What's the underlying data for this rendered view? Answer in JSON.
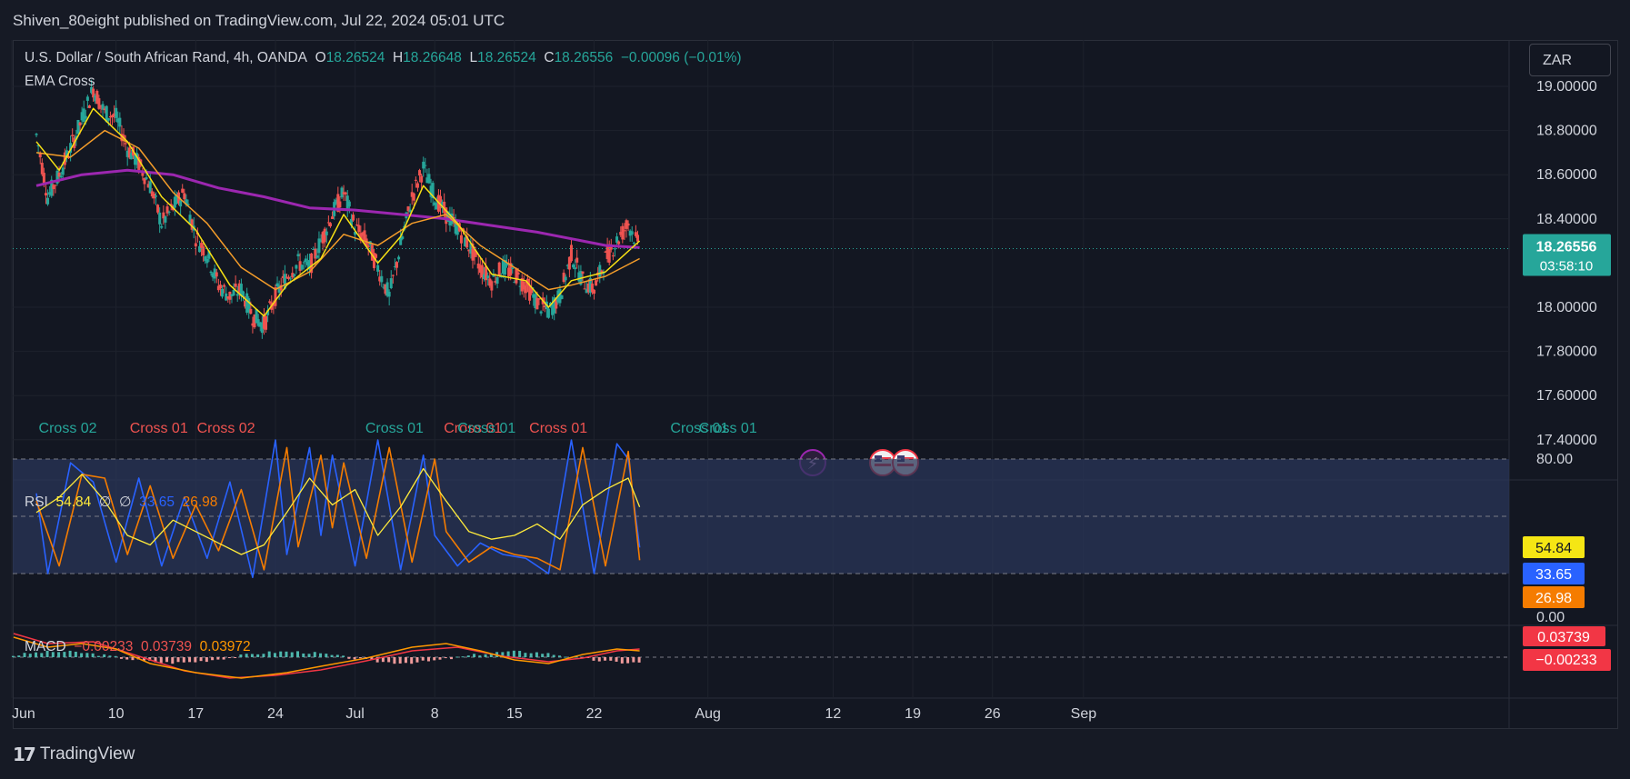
{
  "publisher": "Shiven_80eight published on TradingView.com, Jul 22, 2024 05:01 UTC",
  "branding": "TradingView",
  "symbol": {
    "title": "U.S. Dollar / South African Rand, 4h, OANDA",
    "o_label": "O",
    "o": "18.26524",
    "h_label": "H",
    "h": "18.26648",
    "l_label": "L",
    "l": "18.26524",
    "c_label": "C",
    "c": "18.26556",
    "change": "−0.00096 (−0.01%)",
    "indicator": "EMA Cross"
  },
  "currency_button": "ZAR",
  "colors": {
    "up": "#26a69a",
    "down": "#ef5350",
    "ema_fast": "#f7e014",
    "ema_mid": "#f59d2a",
    "ema_slow": "#9c27b0",
    "rsi_fast": "#2962ff",
    "rsi_mid": "#f57c00",
    "rsi_yellow": "#ffeb3b",
    "macd_line": "#ff9800",
    "signal_line": "#f23645"
  },
  "chart_data": {
    "type": "candlestick",
    "instrument": "USD/ZAR",
    "timeframe": "4h",
    "price_axis": {
      "ticks": [
        "19.00000",
        "18.80000",
        "18.60000",
        "18.40000",
        "18.00000",
        "17.80000",
        "17.60000",
        "17.40000"
      ],
      "ylim": [
        17.2,
        19.1
      ],
      "current_price": "18.26556",
      "countdown": "03:58:10"
    },
    "x_axis_ticks": [
      "Jun",
      "10",
      "17",
      "24",
      "Jul",
      "8",
      "15",
      "22",
      "Aug",
      "12",
      "19",
      "26",
      "Sep"
    ],
    "close_path_days": [
      [
        3,
        18.78
      ],
      [
        4,
        18.5
      ],
      [
        5,
        18.6
      ],
      [
        6,
        18.72
      ],
      [
        7,
        18.85
      ],
      [
        8,
        18.99
      ],
      [
        9,
        18.88
      ],
      [
        10,
        18.86
      ],
      [
        11,
        18.72
      ],
      [
        12,
        18.65
      ],
      [
        13,
        18.55
      ],
      [
        14,
        18.38
      ],
      [
        15,
        18.45
      ],
      [
        16,
        18.52
      ],
      [
        17,
        18.32
      ],
      [
        18,
        18.24
      ],
      [
        19,
        18.1
      ],
      [
        20,
        18.05
      ],
      [
        21,
        18.08
      ],
      [
        22,
        17.96
      ],
      [
        23,
        17.92
      ],
      [
        24,
        18.05
      ],
      [
        25,
        18.14
      ],
      [
        26,
        18.2
      ],
      [
        27,
        18.18
      ],
      [
        28,
        18.3
      ],
      [
        29,
        18.42
      ],
      [
        30,
        18.52
      ],
      [
        31,
        18.36
      ],
      [
        32,
        18.3
      ],
      [
        33,
        18.18
      ],
      [
        34,
        18.05
      ],
      [
        35,
        18.28
      ],
      [
        36,
        18.5
      ],
      [
        37,
        18.63
      ],
      [
        38,
        18.5
      ],
      [
        39,
        18.42
      ],
      [
        40,
        18.36
      ],
      [
        41,
        18.28
      ],
      [
        42,
        18.18
      ],
      [
        43,
        18.12
      ],
      [
        44,
        18.18
      ],
      [
        45,
        18.15
      ],
      [
        46,
        18.1
      ],
      [
        47,
        18.02
      ],
      [
        48,
        17.98
      ],
      [
        49,
        18.05
      ],
      [
        50,
        18.24
      ],
      [
        51,
        18.12
      ],
      [
        52,
        18.08
      ],
      [
        53,
        18.22
      ],
      [
        54,
        18.3
      ],
      [
        55,
        18.38
      ],
      [
        56,
        18.26556
      ]
    ],
    "ema_fast": [
      [
        3,
        18.75
      ],
      [
        5,
        18.62
      ],
      [
        8,
        18.9
      ],
      [
        11,
        18.75
      ],
      [
        14,
        18.5
      ],
      [
        17,
        18.35
      ],
      [
        20,
        18.1
      ],
      [
        23,
        17.96
      ],
      [
        25,
        18.1
      ],
      [
        28,
        18.22
      ],
      [
        30,
        18.42
      ],
      [
        33,
        18.2
      ],
      [
        35,
        18.32
      ],
      [
        37,
        18.55
      ],
      [
        40,
        18.38
      ],
      [
        43,
        18.15
      ],
      [
        46,
        18.12
      ],
      [
        48,
        18.0
      ],
      [
        50,
        18.12
      ],
      [
        53,
        18.16
      ],
      [
        56,
        18.3
      ]
    ],
    "ema_mid": [
      [
        3,
        18.7
      ],
      [
        6,
        18.68
      ],
      [
        9,
        18.8
      ],
      [
        12,
        18.72
      ],
      [
        15,
        18.52
      ],
      [
        18,
        18.38
      ],
      [
        21,
        18.18
      ],
      [
        24,
        18.08
      ],
      [
        27,
        18.16
      ],
      [
        30,
        18.33
      ],
      [
        33,
        18.28
      ],
      [
        36,
        18.38
      ],
      [
        39,
        18.42
      ],
      [
        42,
        18.28
      ],
      [
        45,
        18.18
      ],
      [
        48,
        18.08
      ],
      [
        50,
        18.1
      ],
      [
        53,
        18.14
      ],
      [
        56,
        18.22
      ]
    ],
    "ema_slow": [
      [
        3,
        18.55
      ],
      [
        7,
        18.6
      ],
      [
        11,
        18.62
      ],
      [
        15,
        18.6
      ],
      [
        19,
        18.54
      ],
      [
        23,
        18.5
      ],
      [
        27,
        18.45
      ],
      [
        31,
        18.44
      ],
      [
        35,
        18.42
      ],
      [
        39,
        18.4
      ],
      [
        43,
        18.37
      ],
      [
        47,
        18.34
      ],
      [
        51,
        18.3
      ],
      [
        53,
        18.28
      ],
      [
        56,
        18.27
      ]
    ],
    "cross_labels": [
      {
        "text": "Cross 02",
        "day": 3.2,
        "color": "up"
      },
      {
        "text": "Cross 01",
        "day": 11.2,
        "color": "down"
      },
      {
        "text": "Cross 02",
        "day": 17.1,
        "color": "down"
      },
      {
        "text": "Cross 01",
        "day": 31.9,
        "color": "up"
      },
      {
        "text": "Cross 01",
        "day": 38.8,
        "color": "down"
      },
      {
        "text": "Cross 01",
        "day": 40.0,
        "color": "up"
      },
      {
        "text": "Cross 01",
        "day": 46.3,
        "color": "down"
      },
      {
        "text": "Cross 01",
        "day": 58.7,
        "color": "up"
      },
      {
        "text": "Cross 01",
        "day": 61.2,
        "color": "up"
      }
    ],
    "rsi": {
      "name": "RSI",
      "values_display": [
        "54.84",
        "∅",
        "∅",
        "33.65",
        "26.98"
      ],
      "axis_ticks": [
        "80.00",
        "0.00"
      ],
      "ylim": [
        0,
        100
      ],
      "bands": [
        20,
        50,
        80
      ],
      "badges": [
        "54.84",
        "33.65",
        "26.98"
      ],
      "rsi_yellow": [
        [
          3,
          52
        ],
        [
          5,
          60
        ],
        [
          7,
          72
        ],
        [
          9,
          58
        ],
        [
          11,
          40
        ],
        [
          13,
          35
        ],
        [
          15,
          48
        ],
        [
          17,
          42
        ],
        [
          19,
          36
        ],
        [
          21,
          30
        ],
        [
          23,
          35
        ],
        [
          25,
          52
        ],
        [
          27,
          70
        ],
        [
          29,
          56
        ],
        [
          31,
          64
        ],
        [
          33,
          40
        ],
        [
          35,
          55
        ],
        [
          37,
          75
        ],
        [
          39,
          58
        ],
        [
          41,
          42
        ],
        [
          43,
          38
        ],
        [
          45,
          40
        ],
        [
          47,
          46
        ],
        [
          49,
          38
        ],
        [
          51,
          56
        ],
        [
          53,
          64
        ],
        [
          55,
          70
        ],
        [
          56,
          54.84
        ]
      ],
      "rsi_blue": [
        [
          3,
          62
        ],
        [
          4,
          20
        ],
        [
          6,
          78
        ],
        [
          8,
          68
        ],
        [
          10,
          26
        ],
        [
          12,
          70
        ],
        [
          14,
          24
        ],
        [
          16,
          60
        ],
        [
          18,
          28
        ],
        [
          20,
          68
        ],
        [
          22,
          18
        ],
        [
          24,
          90
        ],
        [
          25,
          30
        ],
        [
          27,
          86
        ],
        [
          28,
          40
        ],
        [
          29,
          82
        ],
        [
          31,
          24
        ],
        [
          33,
          90
        ],
        [
          35,
          22
        ],
        [
          37,
          82
        ],
        [
          38,
          40
        ],
        [
          40,
          24
        ],
        [
          42,
          36
        ],
        [
          44,
          30
        ],
        [
          46,
          28
        ],
        [
          48,
          20
        ],
        [
          50,
          90
        ],
        [
          52,
          20
        ],
        [
          54,
          88
        ],
        [
          55,
          80
        ],
        [
          56,
          33.65
        ]
      ],
      "rsi_orange": [
        [
          3,
          58
        ],
        [
          5,
          24
        ],
        [
          7,
          72
        ],
        [
          9,
          70
        ],
        [
          11,
          30
        ],
        [
          13,
          66
        ],
        [
          15,
          28
        ],
        [
          17,
          56
        ],
        [
          19,
          32
        ],
        [
          21,
          64
        ],
        [
          23,
          22
        ],
        [
          25,
          86
        ],
        [
          26,
          34
        ],
        [
          28,
          82
        ],
        [
          29,
          44
        ],
        [
          30,
          78
        ],
        [
          32,
          28
        ],
        [
          34,
          86
        ],
        [
          36,
          26
        ],
        [
          38,
          80
        ],
        [
          39,
          42
        ],
        [
          41,
          26
        ],
        [
          43,
          34
        ],
        [
          45,
          30
        ],
        [
          47,
          28
        ],
        [
          49,
          22
        ],
        [
          51,
          86
        ],
        [
          53,
          24
        ],
        [
          55,
          84
        ],
        [
          56,
          26.98
        ]
      ]
    },
    "macd": {
      "name": "MACD",
      "histogram": "−0.00233",
      "macd": "0.03739",
      "signal": "0.03972",
      "badges": [
        "0.03739",
        "−0.00233"
      ]
    },
    "event_markers": [
      "lightning-event",
      "us-flag-event",
      "us-flag-event"
    ]
  }
}
